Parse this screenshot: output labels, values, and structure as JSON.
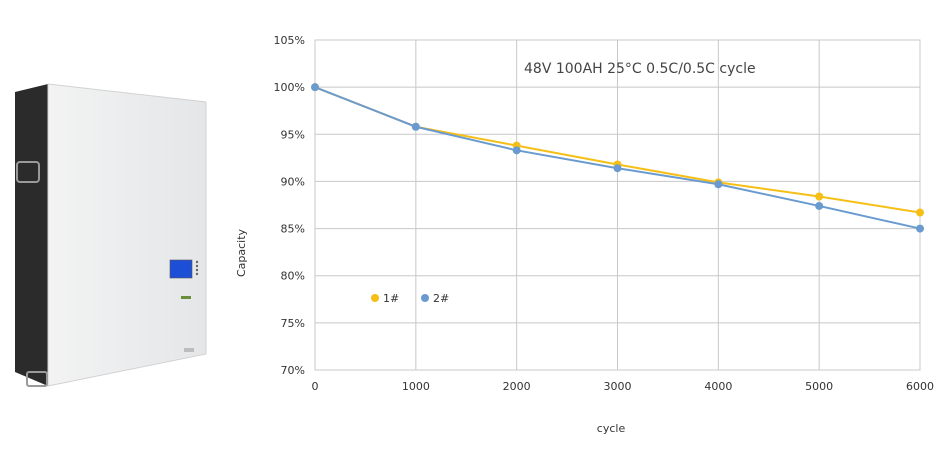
{
  "product": {
    "name": "wall-mounted battery pack"
  },
  "chart_data": {
    "type": "line",
    "title": "48V 100AH 25°C 0.5C/0.5C cycle",
    "xlabel": "cycle",
    "ylabel": "Capacity",
    "x": [
      0,
      1000,
      2000,
      3000,
      4000,
      5000,
      6000
    ],
    "x_tick_labels": [
      "0",
      "1000",
      "2000",
      "3000",
      "4000",
      "5000",
      "6000"
    ],
    "xlim": [
      0,
      6000
    ],
    "ylim": [
      70,
      105
    ],
    "y_ticks": [
      105,
      100,
      95,
      90,
      85,
      80,
      75,
      70
    ],
    "y_tick_labels": [
      "105%",
      "100%",
      "95%",
      "90%",
      "85%",
      "80%",
      "75%",
      "70%"
    ],
    "grid": true,
    "legend_position": "bottom-left",
    "series": [
      {
        "name": "1#",
        "color": "#F5BF16",
        "values": [
          100,
          95.8,
          93.8,
          91.8,
          89.9,
          88.4,
          86.7
        ]
      },
      {
        "name": "2#",
        "color": "#6A9BD0",
        "values": [
          100,
          95.8,
          93.3,
          91.4,
          89.7,
          87.4,
          85.0
        ]
      }
    ]
  }
}
